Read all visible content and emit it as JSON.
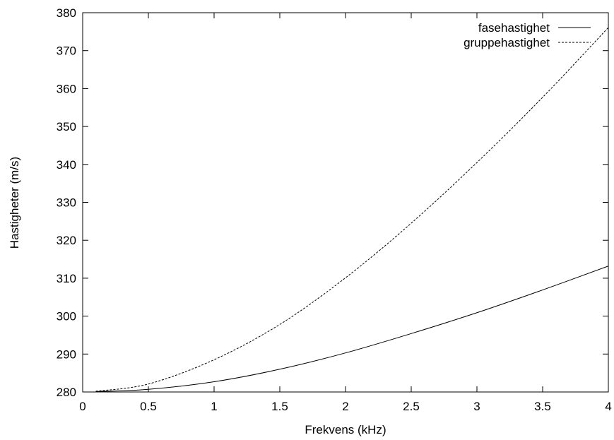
{
  "chart_data": {
    "type": "line",
    "title": "",
    "xlabel": "Frekvens (kHz)",
    "ylabel": "Hastigheter (m/s)",
    "xlim": [
      0,
      4
    ],
    "ylim": [
      280,
      380
    ],
    "x_ticks": [
      0,
      0.5,
      1,
      1.5,
      2,
      2.5,
      3,
      3.5,
      4
    ],
    "x_tick_labels": [
      "0",
      "0.5",
      "1",
      "1.5",
      "2",
      "2.5",
      "3",
      "3.5",
      "4"
    ],
    "y_ticks": [
      280,
      290,
      300,
      310,
      320,
      330,
      340,
      350,
      360,
      370,
      380
    ],
    "y_tick_labels": [
      "280",
      "290",
      "300",
      "310",
      "320",
      "330",
      "340",
      "350",
      "360",
      "370",
      "380"
    ],
    "grid": false,
    "legend_position": "top-right",
    "series": [
      {
        "name": "fasehastighet",
        "line_style": "solid",
        "color": "#000000",
        "x": [
          0.1,
          0.5,
          1,
          1.5,
          2,
          2.5,
          3,
          3.5,
          4
        ],
        "y": [
          280.1,
          280.7,
          282.7,
          286.0,
          290.3,
          295.4,
          300.9,
          306.9,
          313.2
        ]
      },
      {
        "name": "gruppehastighet",
        "line_style": "dashed",
        "color": "#000000",
        "x": [
          0.1,
          0.5,
          1,
          1.5,
          2,
          2.5,
          3,
          3.5,
          4
        ],
        "y": [
          280.2,
          282.1,
          288.5,
          297.8,
          310.1,
          324.5,
          340.5,
          357.7,
          376.1
        ]
      }
    ]
  }
}
